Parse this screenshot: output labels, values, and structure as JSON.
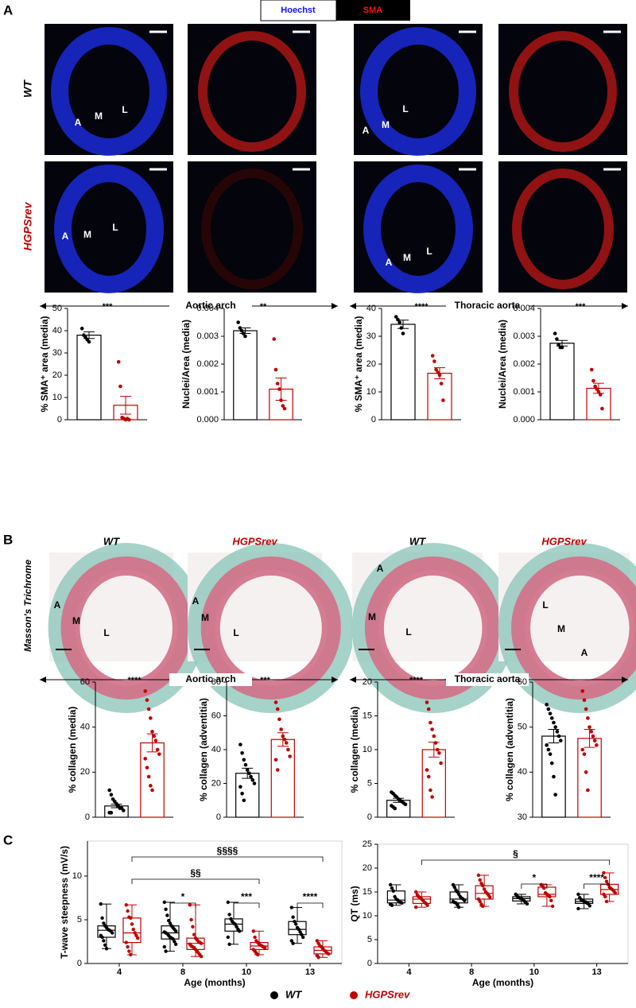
{
  "panel_labels": [
    "A",
    "B",
    "C"
  ],
  "stain_key": [
    "Hoechst",
    "SMA"
  ],
  "panel_a": {
    "row_labels": [
      "WT",
      "HGPSrev"
    ],
    "image_labels": [
      [
        "A",
        "M",
        "L"
      ],
      [
        "A",
        "M",
        "L"
      ],
      [
        "A",
        "M",
        "L"
      ],
      [
        "A",
        "M",
        "L"
      ]
    ],
    "regions": [
      "Aortic arch",
      "Thoracic aorta"
    ]
  },
  "panel_b": {
    "stain": "Masson's Trichrome",
    "column_titles": [
      "WT",
      "HGPSrev",
      "WT",
      "HGPSrev"
    ],
    "image_labels": [
      [
        "A",
        "M",
        "L"
      ],
      [
        "A",
        "M",
        "L"
      ],
      [
        "A",
        "M",
        "L"
      ],
      [
        "L",
        "M",
        "A"
      ]
    ],
    "regions": [
      "Aortic arch",
      "Thoracic aorta"
    ]
  },
  "chart_data": [
    {
      "type": "bar",
      "y_label": "% SMA⁺ area (media)",
      "stars": "***",
      "ylim": [
        0,
        50
      ],
      "yticks": [
        0,
        10,
        20,
        30,
        40,
        50
      ],
      "bars": [
        {
          "color": "#000000",
          "value": 38,
          "error": 1.5,
          "points": [
            41,
            38,
            37,
            36,
            35
          ]
        },
        {
          "color": "#c00000",
          "value": 6.5,
          "error": 4,
          "points": [
            26,
            15,
            1,
            0.5,
            0,
            0.5,
            0
          ]
        }
      ]
    },
    {
      "type": "bar",
      "y_label": "Nuclei/Area (media)",
      "stars": "**",
      "ylim": [
        0,
        0.004
      ],
      "yticks": [
        {
          "value": 0,
          "label": "0.000"
        },
        {
          "value": 0.001,
          "label": "0.001"
        },
        {
          "value": 0.002,
          "label": "0.002"
        },
        {
          "value": 0.003,
          "label": "0.003"
        },
        {
          "value": 0.004,
          "label": "0.004"
        }
      ],
      "bars": [
        {
          "color": "#000000",
          "value": 0.0032,
          "error": 0.0001,
          "points": [
            0.0035,
            0.0033,
            0.0032,
            0.0031,
            0.003
          ]
        },
        {
          "color": "#c00000",
          "value": 0.0011,
          "error": 0.0004,
          "points": [
            0.0029,
            0.0018,
            0.0013,
            0.0011,
            0.0007,
            0.0005,
            0.0004
          ]
        }
      ]
    },
    {
      "type": "bar",
      "y_label": "% SMA⁺ area (media)",
      "stars": "****",
      "ylim": [
        0,
        40
      ],
      "yticks": [
        0,
        10,
        20,
        30,
        40
      ],
      "bars": [
        {
          "color": "#000000",
          "value": 34.3,
          "error": 1.5,
          "points": [
            37,
            36,
            35,
            33,
            31
          ]
        },
        {
          "color": "#c00000",
          "value": 16.7,
          "error": 2,
          "points": [
            23,
            21,
            18,
            17,
            16,
            13,
            7
          ]
        }
      ]
    },
    {
      "type": "bar",
      "y_label": "Nuclei/Area (media)",
      "stars": "***",
      "ylim": [
        0,
        0.004
      ],
      "yticks": [
        {
          "value": 0,
          "label": "0.000"
        },
        {
          "value": 0.001,
          "label": "0.001"
        },
        {
          "value": 0.002,
          "label": "0.002"
        },
        {
          "value": 0.003,
          "label": "0.003"
        },
        {
          "value": 0.004,
          "label": "0.004"
        }
      ],
      "bars": [
        {
          "color": "#000000",
          "value": 0.00275,
          "error": 0.0001,
          "points": [
            0.0031,
            0.0029,
            0.0027,
            0.0026,
            0.0026
          ]
        },
        {
          "color": "#c00000",
          "value": 0.00113,
          "error": 0.00018,
          "points": [
            0.0018,
            0.0014,
            0.0012,
            0.0011,
            0.001,
            0.0009,
            0.0004
          ]
        }
      ]
    },
    {
      "type": "bar",
      "y_label": "% collagen (media)",
      "stars": "****",
      "ylim": [
        0,
        60
      ],
      "yticks": [
        0,
        20,
        40,
        60
      ],
      "bars": [
        {
          "color": "#000000",
          "value": 5,
          "error": 0.8,
          "points": [
            12,
            10,
            8,
            7,
            6,
            5,
            4,
            4,
            3,
            2,
            2
          ]
        },
        {
          "color": "#c00000",
          "value": 33,
          "error": 4,
          "points": [
            56,
            52,
            48,
            44,
            38,
            36,
            34,
            30,
            28,
            26,
            22,
            18,
            14,
            12
          ]
        }
      ]
    },
    {
      "type": "bar",
      "y_label": "% collagen (adventitia)",
      "stars": "***",
      "ylim": [
        0,
        80
      ],
      "yticks": [
        0,
        20,
        40,
        60,
        80
      ],
      "bars": [
        {
          "color": "#000000",
          "value": 26,
          "error": 3,
          "points": [
            43,
            38,
            34,
            31,
            28,
            26,
            24,
            22,
            20,
            18,
            14,
            10
          ]
        },
        {
          "color": "#c00000",
          "value": 46,
          "error": 4,
          "points": [
            68,
            64,
            58,
            52,
            48,
            46,
            44,
            40,
            36,
            34,
            28
          ]
        }
      ]
    },
    {
      "type": "bar",
      "y_label": "% collagen (media)",
      "stars": "****",
      "ylim": [
        0,
        20
      ],
      "yticks": [
        0,
        5,
        10,
        15,
        20
      ],
      "bars": [
        {
          "color": "#000000",
          "value": 2.5,
          "error": 0.3,
          "points": [
            3.7,
            3.5,
            3.2,
            3,
            2.7,
            2.5,
            2.3,
            2.1,
            1.9,
            1.7,
            1.5,
            1.3
          ]
        },
        {
          "color": "#c00000",
          "value": 10,
          "error": 1.1,
          "points": [
            17,
            16,
            14,
            13,
            12,
            11,
            10,
            9.5,
            8,
            7,
            6,
            4,
            3
          ]
        }
      ]
    },
    {
      "type": "bar",
      "y_label": "% collagen (adventitia)",
      "ylim": [
        30,
        60
      ],
      "yticks": [
        30,
        40,
        50,
        60
      ],
      "bars": [
        {
          "color": "#000000",
          "value": 48,
          "error": 1.5,
          "points": [
            55,
            54,
            53,
            52,
            51,
            50,
            49,
            48,
            47,
            46,
            45,
            44,
            42,
            39,
            35
          ]
        },
        {
          "color": "#c00000",
          "value": 47.5,
          "error": 2,
          "points": [
            58,
            56,
            54,
            52,
            50,
            49,
            48,
            47,
            46,
            45,
            44,
            40,
            36
          ]
        }
      ]
    },
    {
      "type": "box",
      "y_label": "T-wave steepness (mV/s)",
      "x_label": "Age (months)",
      "categories": [
        "4",
        "8",
        "10",
        "13"
      ],
      "ylim": [
        0,
        14
      ],
      "yticks": [
        0,
        5,
        10
      ],
      "series": [
        {
          "name": "WT",
          "color": "#000000",
          "boxes": [
            {
              "min": 1.7,
              "q1": 3.0,
              "median": 3.8,
              "q3": 4.3,
              "max": 6.8,
              "points": [
                6.8,
                5.2,
                4.6,
                4.3,
                4.1,
                3.9,
                3.8,
                3.7,
                3.5,
                3.2,
                3.0,
                2.6,
                2.1,
                1.7
              ]
            },
            {
              "min": 1.4,
              "q1": 2.8,
              "median": 3.5,
              "q3": 4.3,
              "max": 7.0,
              "points": [
                7.0,
                6.2,
                5.5,
                4.9,
                4.6,
                4.3,
                4.1,
                3.9,
                3.7,
                3.6,
                3.5,
                3.4,
                3.2,
                3.0,
                2.9,
                2.8,
                2.5,
                2.2,
                1.9,
                1.4
              ]
            },
            {
              "min": 2.2,
              "q1": 3.7,
              "median": 4.5,
              "q3": 5.1,
              "max": 7.0,
              "points": [
                7.0,
                5.6,
                5.1,
                4.8,
                4.6,
                4.5,
                4.2,
                3.9,
                3.7,
                3.0,
                2.2
              ]
            },
            {
              "min": 2.3,
              "q1": 3.3,
              "median": 3.9,
              "q3": 4.8,
              "max": 6.4,
              "points": [
                6.4,
                5.3,
                4.8,
                4.5,
                4.1,
                3.9,
                3.6,
                3.3,
                3.0,
                2.6,
                2.3
              ]
            }
          ]
        },
        {
          "name": "HGPSrev",
          "color": "#c00000",
          "boxes": [
            {
              "min": 1.0,
              "q1": 2.4,
              "median": 3.5,
              "q3": 5.2,
              "max": 6.7,
              "points": [
                6.7,
                6.0,
                5.3,
                5.2,
                4.5,
                3.9,
                3.5,
                3.2,
                2.9,
                2.4,
                1.9,
                1.4,
                1.0
              ]
            },
            {
              "min": 0.8,
              "q1": 1.6,
              "median": 2.3,
              "q3": 2.9,
              "max": 6.7,
              "points": [
                6.7,
                5.0,
                4.2,
                3.3,
                2.9,
                2.7,
                2.5,
                2.4,
                2.3,
                2.2,
                2.0,
                1.9,
                1.8,
                1.6,
                1.4,
                1.2,
                1.0,
                0.8
              ]
            },
            {
              "min": 1.0,
              "q1": 1.6,
              "median": 2.0,
              "q3": 2.4,
              "max": 3.7,
              "points": [
                3.7,
                3.0,
                2.6,
                2.4,
                2.2,
                2.1,
                2.0,
                1.9,
                1.8,
                1.6,
                1.4,
                1.2,
                1.0
              ]
            },
            {
              "min": 0.7,
              "q1": 1.1,
              "median": 1.5,
              "q3": 1.9,
              "max": 2.6,
              "points": [
                2.6,
                2.3,
                2.0,
                1.9,
                1.7,
                1.5,
                1.4,
                1.2,
                1.1,
                0.9,
                0.7
              ]
            }
          ]
        }
      ],
      "brackets": [
        {
          "label": "§§§§",
          "from": "4",
          "to": "13"
        },
        {
          "label": "§§",
          "from": "4",
          "to": "10"
        },
        {
          "label": "*",
          "at": "8"
        },
        {
          "label": "***",
          "at": "10"
        },
        {
          "label": "****",
          "at": "13"
        }
      ]
    },
    {
      "type": "box",
      "y_label": "QT (ms)",
      "x_label": "Age (months)",
      "categories": [
        "4",
        "8",
        "10",
        "13"
      ],
      "ylim": [
        0,
        25
      ],
      "yticks": [
        0,
        5,
        10,
        15,
        20,
        25
      ],
      "series": [
        {
          "name": "WT",
          "color": "#000000",
          "boxes": [
            {
              "min": 12.2,
              "q1": 12.7,
              "median": 13.3,
              "q3": 15.2,
              "max": 16.5,
              "points": [
                16.5,
                15.8,
                15.2,
                14.0,
                13.5,
                13.3,
                13.0,
                12.8,
                12.7,
                12.4,
                12.2
              ]
            },
            {
              "min": 11.8,
              "q1": 12.7,
              "median": 13.5,
              "q3": 15.0,
              "max": 16.5,
              "points": [
                16.5,
                16.0,
                15.4,
                15.0,
                14.5,
                14.0,
                13.7,
                13.5,
                13.2,
                13.0,
                12.8,
                12.7,
                12.3,
                11.8
              ]
            },
            {
              "min": 12.5,
              "q1": 13.1,
              "median": 13.6,
              "q3": 14.0,
              "max": 14.5,
              "points": [
                14.5,
                14.1,
                13.9,
                13.7,
                13.6,
                13.4,
                13.1,
                12.8,
                12.5
              ]
            },
            {
              "min": 11.5,
              "q1": 12.6,
              "median": 13.0,
              "q3": 13.5,
              "max": 14.5,
              "points": [
                14.5,
                13.8,
                13.4,
                13.2,
                13.0,
                12.9,
                12.7,
                12.5,
                12.1,
                11.5
              ]
            }
          ]
        },
        {
          "name": "HGPSrev",
          "color": "#c00000",
          "boxes": [
            {
              "min": 11.8,
              "q1": 12.6,
              "median": 13.5,
              "q3": 14.0,
              "max": 15.0,
              "points": [
                15.0,
                14.4,
                14.0,
                13.8,
                13.5,
                13.2,
                12.8,
                12.6,
                12.2,
                11.8
              ]
            },
            {
              "min": 12.0,
              "q1": 13.5,
              "median": 14.7,
              "q3": 16.3,
              "max": 18.5,
              "points": [
                18.5,
                17.5,
                16.8,
                16.3,
                15.6,
                15.0,
                14.7,
                14.3,
                13.9,
                13.5,
                13.0,
                12.4,
                12.0
              ]
            },
            {
              "min": 12.0,
              "q1": 14.0,
              "median": 14.5,
              "q3": 16.0,
              "max": 16.5,
              "points": [
                16.5,
                16.2,
                15.8,
                14.8,
                14.5,
                14.3,
                14.0,
                13.2,
                12.0
              ]
            },
            {
              "min": 13.0,
              "q1": 14.5,
              "median": 15.5,
              "q3": 16.6,
              "max": 19.0,
              "points": [
                19.0,
                18.0,
                17.2,
                16.6,
                16.0,
                15.7,
                15.5,
                15.2,
                14.8,
                14.5,
                14.0,
                13.0
              ]
            }
          ]
        }
      ],
      "brackets": [
        {
          "label": "§",
          "from": "4",
          "to": "13"
        },
        {
          "label": "*",
          "at": "10"
        },
        {
          "label": "****",
          "at": "13"
        }
      ]
    }
  ]
}
